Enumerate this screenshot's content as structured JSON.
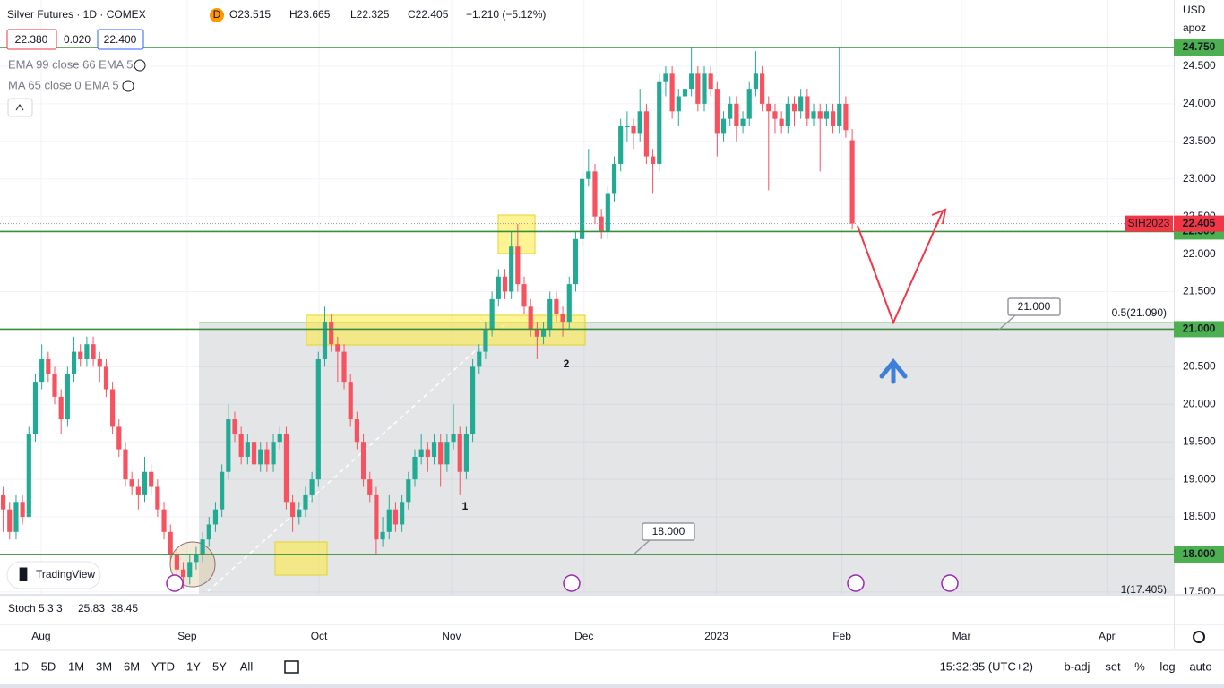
{
  "header": {
    "title": "Silver Futures · 1D · COMEX",
    "badge": "D",
    "ohlc": [
      "O23.515",
      "H23.665",
      "L22.325",
      "C22.405"
    ],
    "change": "−1.210 (−5.12%)",
    "bid": "22.380",
    "spread": "0.020",
    "ask": "22.400",
    "indicators": [
      "EMA 99 close 66 EMA 5",
      "MA 65 close 0 EMA 5"
    ]
  },
  "price_axis": {
    "currency": "USD",
    "user": "apoz"
  },
  "logo": "TradingView",
  "stoch": {
    "label": "Stoch 5 3 3",
    "values": [
      "25.83",
      "38.45"
    ]
  },
  "toolbar": {
    "ranges": [
      "1D",
      "5D",
      "1M",
      "3M",
      "6M",
      "YTD",
      "1Y",
      "5Y",
      "All"
    ],
    "time": "15:32:35 (UTC+2)",
    "options": [
      "b-adj",
      "set",
      "%",
      "log",
      "auto"
    ]
  },
  "chart_data": {
    "type": "candlestick",
    "up_color": "#22ab94",
    "down_color": "#f7525f",
    "level_color": "#388e3c",
    "grid": true,
    "ylim": [
      17.475,
      25.382
    ],
    "yticks": [
      {
        "value": 17.5,
        "label": "17.500"
      },
      {
        "value": 18,
        "label": "18.000"
      },
      {
        "value": 18.5,
        "label": "18.500"
      },
      {
        "value": 19,
        "label": "19.000"
      },
      {
        "value": 19.5,
        "label": "19.500"
      },
      {
        "value": 20,
        "label": "20.000"
      },
      {
        "value": 20.5,
        "label": "20.500"
      },
      {
        "value": 21,
        "label": "21.000"
      },
      {
        "value": 21.5,
        "label": "21.500"
      },
      {
        "value": 22,
        "label": "22.000"
      },
      {
        "value": 22.5,
        "label": "22.500"
      },
      {
        "value": 23,
        "label": "23.000"
      },
      {
        "value": 23.5,
        "label": "23.500"
      },
      {
        "value": 24,
        "label": "24.000"
      },
      {
        "value": 24.5,
        "label": "24.500"
      }
    ],
    "xlim": [
      -0.5,
      182
    ],
    "xticks": [
      {
        "value": 5.9,
        "label": "Aug"
      },
      {
        "value": 28.6,
        "label": "Sep"
      },
      {
        "value": 49.1,
        "label": "Oct"
      },
      {
        "value": 69.7,
        "label": "Nov"
      },
      {
        "value": 90.3,
        "label": "Dec"
      },
      {
        "value": 110.9,
        "label": "2023"
      },
      {
        "value": 130.4,
        "label": "Feb"
      },
      {
        "value": 149,
        "label": "Mar"
      },
      {
        "value": 171.6,
        "label": "Apr"
      }
    ],
    "series": [
      {
        "name": "SIH2023",
        "ohlc": [
          [
            18.8,
            18.9,
            18.3,
            18.6
          ],
          [
            18.6,
            18.7,
            18.2,
            18.3
          ],
          [
            18.3,
            18.8,
            18.2,
            18.7
          ],
          [
            18.7,
            18.8,
            18.4,
            18.5
          ],
          [
            18.5,
            19.7,
            18.5,
            19.6
          ],
          [
            19.6,
            20.4,
            19.5,
            20.3
          ],
          [
            20.3,
            20.8,
            20.2,
            20.6
          ],
          [
            20.6,
            20.7,
            20.3,
            20.4
          ],
          [
            20.4,
            20.5,
            20.0,
            20.1
          ],
          [
            20.1,
            20.2,
            19.6,
            19.8
          ],
          [
            19.8,
            20.5,
            19.7,
            20.4
          ],
          [
            20.4,
            20.9,
            20.3,
            20.7
          ],
          [
            20.7,
            20.8,
            20.5,
            20.6
          ],
          [
            20.6,
            20.9,
            20.5,
            20.8
          ],
          [
            20.8,
            20.9,
            20.5,
            20.6
          ],
          [
            20.6,
            20.7,
            20.3,
            20.5
          ],
          [
            20.5,
            20.6,
            20.1,
            20.2
          ],
          [
            20.2,
            20.3,
            19.6,
            19.7
          ],
          [
            19.7,
            19.8,
            19.3,
            19.4
          ],
          [
            19.4,
            19.5,
            18.9,
            19.0
          ],
          [
            19.0,
            19.1,
            18.8,
            18.9
          ],
          [
            18.9,
            19.0,
            18.6,
            18.8
          ],
          [
            18.8,
            19.3,
            18.7,
            19.1
          ],
          [
            19.1,
            19.2,
            18.8,
            18.9
          ],
          [
            18.9,
            19.0,
            18.5,
            18.6
          ],
          [
            18.6,
            18.7,
            18.2,
            18.3
          ],
          [
            18.3,
            18.4,
            17.9,
            18.0
          ],
          [
            18.0,
            18.1,
            17.7,
            17.8
          ],
          [
            17.8,
            17.9,
            17.55,
            17.7
          ],
          [
            17.7,
            18.0,
            17.6,
            17.9
          ],
          [
            17.9,
            18.1,
            17.8,
            18.0
          ],
          [
            18.0,
            18.3,
            17.9,
            18.2
          ],
          [
            18.2,
            18.5,
            18.1,
            18.4
          ],
          [
            18.4,
            18.7,
            18.3,
            18.6
          ],
          [
            18.6,
            19.2,
            18.5,
            19.1
          ],
          [
            19.1,
            20.0,
            19.0,
            19.8
          ],
          [
            19.8,
            19.9,
            19.5,
            19.6
          ],
          [
            19.6,
            19.7,
            19.2,
            19.3
          ],
          [
            19.3,
            19.6,
            19.2,
            19.5
          ],
          [
            19.5,
            19.6,
            19.1,
            19.2
          ],
          [
            19.2,
            19.5,
            19.1,
            19.4
          ],
          [
            19.4,
            19.5,
            19.1,
            19.2
          ],
          [
            19.2,
            19.6,
            19.1,
            19.5
          ],
          [
            19.5,
            19.7,
            19.4,
            19.6
          ],
          [
            19.6,
            19.7,
            18.6,
            18.7
          ],
          [
            18.7,
            18.8,
            18.3,
            18.5
          ],
          [
            18.5,
            18.7,
            18.4,
            18.6
          ],
          [
            18.6,
            18.9,
            18.5,
            18.8
          ],
          [
            18.8,
            19.1,
            18.7,
            19.0
          ],
          [
            19.0,
            20.7,
            18.9,
            20.6
          ],
          [
            20.6,
            21.3,
            20.5,
            21.1
          ],
          [
            21.1,
            21.2,
            20.7,
            20.8
          ],
          [
            20.8,
            20.9,
            20.3,
            20.7
          ],
          [
            20.7,
            20.8,
            20.2,
            20.3
          ],
          [
            20.3,
            20.4,
            19.7,
            19.8
          ],
          [
            19.8,
            19.9,
            19.4,
            19.5
          ],
          [
            19.5,
            19.6,
            18.9,
            19.0
          ],
          [
            19.0,
            19.1,
            18.7,
            18.8
          ],
          [
            18.8,
            18.9,
            18.0,
            18.2
          ],
          [
            18.2,
            18.5,
            18.1,
            18.3
          ],
          [
            18.3,
            18.8,
            18.2,
            18.6
          ],
          [
            18.6,
            18.7,
            18.3,
            18.4
          ],
          [
            18.4,
            18.8,
            18.3,
            18.7
          ],
          [
            18.7,
            19.1,
            18.6,
            19.0
          ],
          [
            19.0,
            19.4,
            18.9,
            19.3
          ],
          [
            19.3,
            19.6,
            19.2,
            19.4
          ],
          [
            19.4,
            19.5,
            19.1,
            19.3
          ],
          [
            19.3,
            19.6,
            19.2,
            19.5
          ],
          [
            19.5,
            19.6,
            18.9,
            19.2
          ],
          [
            19.2,
            19.6,
            19.1,
            19.5
          ],
          [
            19.5,
            20.0,
            19.4,
            19.6
          ],
          [
            19.6,
            19.7,
            18.8,
            19.1
          ],
          [
            19.1,
            19.7,
            19.0,
            19.6
          ],
          [
            19.6,
            20.6,
            19.5,
            20.5
          ],
          [
            20.5,
            20.8,
            20.4,
            20.7
          ],
          [
            20.7,
            21.1,
            20.6,
            21.0
          ],
          [
            21.0,
            21.5,
            20.9,
            21.4
          ],
          [
            21.4,
            21.8,
            21.3,
            21.7
          ],
          [
            21.7,
            21.8,
            21.4,
            21.5
          ],
          [
            21.5,
            22.3,
            21.4,
            22.1
          ],
          [
            22.1,
            22.4,
            21.5,
            21.6
          ],
          [
            21.6,
            21.7,
            21.2,
            21.3
          ],
          [
            21.3,
            21.4,
            20.9,
            21.0
          ],
          [
            21.0,
            21.1,
            20.6,
            20.9
          ],
          [
            20.9,
            21.1,
            20.8,
            21.0
          ],
          [
            21.0,
            21.5,
            20.9,
            21.4
          ],
          [
            21.4,
            21.5,
            21.1,
            21.2
          ],
          [
            21.2,
            21.3,
            20.9,
            21.1
          ],
          [
            21.1,
            21.7,
            21.0,
            21.6
          ],
          [
            21.6,
            22.3,
            21.5,
            22.2
          ],
          [
            22.2,
            23.1,
            22.1,
            23.0
          ],
          [
            23.0,
            23.4,
            22.9,
            23.1
          ],
          [
            23.1,
            23.2,
            22.4,
            22.5
          ],
          [
            22.5,
            22.6,
            22.2,
            22.3
          ],
          [
            22.3,
            22.9,
            22.2,
            22.8
          ],
          [
            22.8,
            23.3,
            22.7,
            23.2
          ],
          [
            23.2,
            23.8,
            23.1,
            23.7
          ],
          [
            23.7,
            23.9,
            23.5,
            23.7
          ],
          [
            23.7,
            23.8,
            23.4,
            23.6
          ],
          [
            23.6,
            24.2,
            23.5,
            23.9
          ],
          [
            23.9,
            24.0,
            23.2,
            23.3
          ],
          [
            23.3,
            23.4,
            22.8,
            23.2
          ],
          [
            23.2,
            24.4,
            23.1,
            24.3
          ],
          [
            24.3,
            24.5,
            24.1,
            24.4
          ],
          [
            24.4,
            24.5,
            23.8,
            23.9
          ],
          [
            23.9,
            24.2,
            23.7,
            24.1
          ],
          [
            24.1,
            24.3,
            23.9,
            24.2
          ],
          [
            24.2,
            24.75,
            24.1,
            24.4
          ],
          [
            24.4,
            24.5,
            23.9,
            24.0
          ],
          [
            24.0,
            24.5,
            23.9,
            24.4
          ],
          [
            24.4,
            24.5,
            24.1,
            24.2
          ],
          [
            24.2,
            24.3,
            23.3,
            23.6
          ],
          [
            23.6,
            23.9,
            23.5,
            23.8
          ],
          [
            23.8,
            24.1,
            23.7,
            24.0
          ],
          [
            24.0,
            24.1,
            23.5,
            23.7
          ],
          [
            23.7,
            23.9,
            23.6,
            23.8
          ],
          [
            23.8,
            24.3,
            23.7,
            24.2
          ],
          [
            24.2,
            24.7,
            24.1,
            24.4
          ],
          [
            24.4,
            24.5,
            23.9,
            24.0
          ],
          [
            24.0,
            24.1,
            22.85,
            23.9
          ],
          [
            23.9,
            24.0,
            23.6,
            23.8
          ],
          [
            23.8,
            23.9,
            23.6,
            23.7
          ],
          [
            23.7,
            24.1,
            23.6,
            24.0
          ],
          [
            24.0,
            24.1,
            23.7,
            23.9
          ],
          [
            23.9,
            24.2,
            23.8,
            24.1
          ],
          [
            24.1,
            24.2,
            23.7,
            23.8
          ],
          [
            23.8,
            24.0,
            23.7,
            23.9
          ],
          [
            23.9,
            24.0,
            23.1,
            23.8
          ],
          [
            23.8,
            24.0,
            23.7,
            23.9
          ],
          [
            23.9,
            24.0,
            23.6,
            23.7
          ],
          [
            23.7,
            24.75,
            23.6,
            24.0
          ],
          [
            24.0,
            24.1,
            23.55,
            23.65
          ],
          [
            23.515,
            23.665,
            22.325,
            22.405
          ]
        ]
      }
    ],
    "last_price": {
      "value": 22.405,
      "label": "22.405"
    },
    "levels": [
      {
        "value": 24.75,
        "label": "24.750"
      },
      {
        "value": 22.3,
        "label": "22.300"
      },
      {
        "value": 21,
        "label": "21.000"
      },
      {
        "value": 18,
        "label": "18.000"
      }
    ],
    "fib_levels": [
      {
        "value": 21.09,
        "label": "0.5(21.090)"
      },
      {
        "value": 17.405,
        "label": "1(17.405)"
      }
    ],
    "notes": [
      "21.000",
      "18.000"
    ],
    "wave_labels": [
      "1",
      "2"
    ]
  }
}
